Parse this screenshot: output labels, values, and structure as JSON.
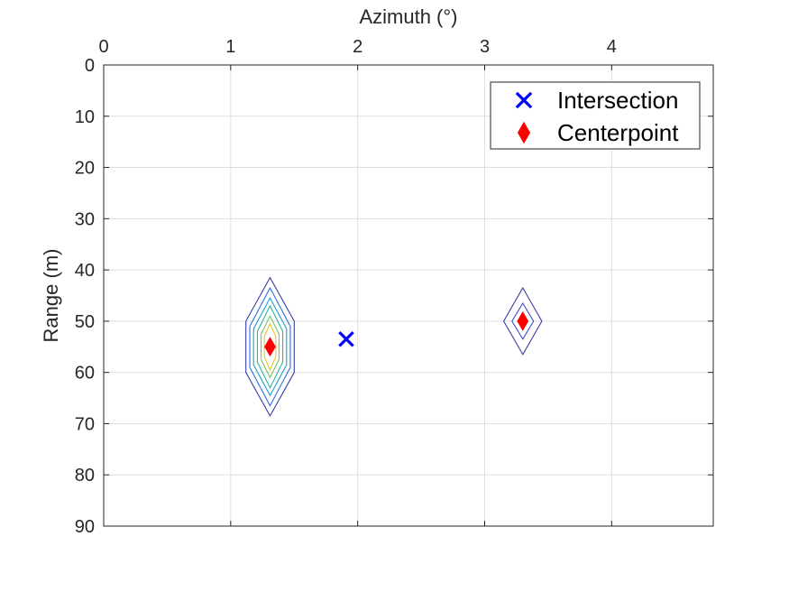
{
  "chart_data": {
    "type": "scatter",
    "xlabel": "Azimuth (°)",
    "ylabel": "Range (m)",
    "xlim": [
      0,
      4.8
    ],
    "ylim": [
      0,
      90
    ],
    "y_reversed": true,
    "x_axis_location": "top",
    "grid": true,
    "x_ticks": [
      0,
      1,
      2,
      3,
      4
    ],
    "y_ticks": [
      0,
      10,
      20,
      30,
      40,
      50,
      60,
      70,
      80,
      90
    ],
    "legend": {
      "placement": "top-right",
      "entries": [
        {
          "label": "Intersection",
          "marker": "x",
          "color": "#0000ff"
        },
        {
          "label": "Centerpoint",
          "marker": "diamond",
          "color": "#ff0000"
        }
      ]
    },
    "series": [
      {
        "name": "Intersection",
        "marker": "x",
        "color": "#0000ff",
        "points": [
          {
            "x": 1.91,
            "y": 53.5
          }
        ]
      },
      {
        "name": "Centerpoint",
        "marker": "diamond",
        "color": "#ff0000",
        "points": [
          {
            "x": 1.31,
            "y": 55
          },
          {
            "x": 3.3,
            "y": 50
          }
        ]
      }
    ],
    "contours": [
      {
        "center": {
          "x": 1.31,
          "y": 55
        },
        "levels": [
          {
            "color": "#3b3ba8",
            "dx": 0.19,
            "y_top": 41.5,
            "y_upper_shoulder": 50,
            "y_lower_shoulder": 60,
            "y_bottom": 68.5
          },
          {
            "color": "#2b6ee0",
            "dx": 0.16,
            "y_top": 43.5,
            "y_upper_shoulder": 51,
            "y_lower_shoulder": 59,
            "y_bottom": 66.5
          },
          {
            "color": "#1a9fd0",
            "dx": 0.13,
            "y_top": 45.5,
            "y_upper_shoulder": 51.5,
            "y_lower_shoulder": 58.5,
            "y_bottom": 64.5
          },
          {
            "color": "#2ab5a0",
            "dx": 0.1,
            "y_top": 47,
            "y_upper_shoulder": 52,
            "y_lower_shoulder": 58,
            "y_bottom": 63
          },
          {
            "color": "#7ec35a",
            "dx": 0.07,
            "y_top": 49,
            "y_upper_shoulder": 52.5,
            "y_lower_shoulder": 57.5,
            "y_bottom": 61
          },
          {
            "color": "#e8c430",
            "dx": 0.045,
            "y_top": 50.5,
            "y_upper_shoulder": 53,
            "y_lower_shoulder": 57,
            "y_bottom": 59.5
          }
        ]
      },
      {
        "center": {
          "x": 3.3,
          "y": 50
        },
        "levels": [
          {
            "color": "#3b3ba8",
            "dx": 0.15,
            "y_top": 43.5,
            "y_upper_shoulder": 50,
            "y_lower_shoulder": 50,
            "y_bottom": 56.5
          },
          {
            "color": "#3e4fc8",
            "dx": 0.085,
            "y_top": 46.5,
            "y_upper_shoulder": 50,
            "y_lower_shoulder": 50,
            "y_bottom": 53.5
          }
        ]
      }
    ]
  }
}
